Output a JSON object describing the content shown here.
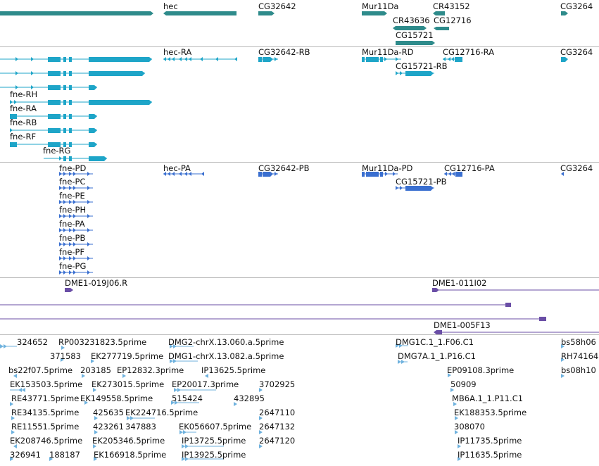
{
  "colors": {
    "gene": "#2e8b8b",
    "transcript": "#1ea5c8",
    "protein": "#3a6fd0",
    "clone": "#6a4ea6",
    "est": "#6fb2de",
    "separator": "#b9b9b9"
  },
  "tracks": {
    "gene": {
      "labels": [
        "hec",
        "CG32642",
        "Mur11Da",
        "CR43152",
        "CG3264",
        "CR43636",
        "CG12716",
        "CG15721"
      ]
    },
    "transcript": {
      "labels": [
        "hec-RA",
        "CG32642-RB",
        "Mur11Da-RD",
        "CG12716-RA",
        "CG3264",
        "CG15721-RB",
        "fne-RH",
        "fne-RA",
        "fne-RB",
        "fne-RF",
        "fne-RG"
      ]
    },
    "protein": {
      "labels": [
        "fne-PD",
        "hec-PA",
        "CG32642-PB",
        "Mur11Da-PD",
        "CG12716-PA",
        "CG3264",
        "CG15721-PB",
        "fne-PC",
        "fne-PE",
        "fne-PH",
        "fne-PA",
        "fne-PB",
        "fne-PF",
        "fne-PG"
      ]
    },
    "clone": {
      "labels": [
        "DME1-019J06.R",
        "DME1-011I02",
        "DME1-005F13"
      ]
    },
    "est": {
      "labels": [
        "324652",
        "RP003231823.5prime",
        "DMG2-chrX.13.060.a.5prime",
        "DMG1C.1_1.F06.C1",
        "bs58h06",
        "371583",
        "EK277719.5prime",
        "DMG1-chrX.13.082.a.5prime",
        "DMG7A.1_1.P16.C1",
        "RH74164",
        "bs22f07.5prime",
        "203185",
        "EP12832.3prime",
        "IP13625.5prime",
        "EP09108.3prime",
        "bs08h10",
        "EK153503.5prime",
        "EK273015.5prime",
        "EP20017.3prime",
        "3702925",
        "50909",
        "RE43771.5prime",
        "EK149558.5prime",
        "515424",
        "432895",
        "MB6A.1_1.P11.C1",
        "RE34135.5prime",
        "425635",
        "EK224716.5prime",
        "2647110",
        "EK188353.5prime",
        "RE11551.5prime",
        "423261",
        "347883",
        "EK056607.5prime",
        "2647132",
        "308070",
        "EK208746.5prime",
        "EK205346.5prime",
        "IP13725.5prime",
        "2647120",
        "IP11735.5prime",
        "326941",
        "188187",
        "EK166918.5prime",
        "IP13925.5prime",
        "IP11635.5prime"
      ]
    }
  }
}
